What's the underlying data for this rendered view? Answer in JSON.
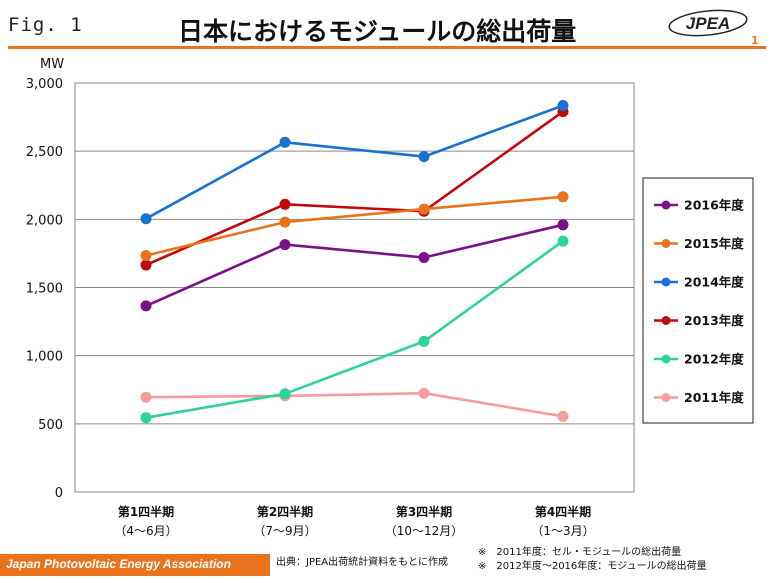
{
  "header": {
    "fig_label": "Fig. 1",
    "title": "日本におけるモジュールの総出荷量",
    "logo_text": "JPEA",
    "page_number": "1"
  },
  "footer": {
    "association": "Japan Photovoltaic Energy Association",
    "source": "出典：JPEA出荷統計資料をもとに作成",
    "notes": [
      "※　2011年度：セル・モジュールの総出荷量",
      "※　2012年度～2016年度：モジュールの総出荷量"
    ]
  },
  "colors": {
    "accent": "#e8731c",
    "2016": "#7b118a",
    "2015": "#e8731c",
    "2014": "#1a72d0",
    "2013": "#c00a0a",
    "2012": "#2fd39a",
    "2011": "#f59c9c"
  },
  "chart_data": {
    "type": "line",
    "title": "",
    "ylabel": "MW",
    "xlabel": "",
    "ylim": [
      0,
      3000
    ],
    "yticks": [
      0,
      500,
      1000,
      1500,
      2000,
      2500,
      3000
    ],
    "ytick_labels": [
      "0",
      "500",
      "1,000",
      "1,500",
      "2,000",
      "2,500",
      "3,000"
    ],
    "grid": true,
    "legend_position": "right",
    "categories": [
      {
        "label": "第1四半期",
        "sub": "（4～6月）"
      },
      {
        "label": "第2四半期",
        "sub": "（7～9月）"
      },
      {
        "label": "第3四半期",
        "sub": "（10～12月）"
      },
      {
        "label": "第4四半期",
        "sub": "（1～3月）"
      }
    ],
    "series": [
      {
        "name": "2016年度",
        "color": "#7b118a",
        "values": [
          1365,
          1815,
          1720,
          1960
        ]
      },
      {
        "name": "2015年度",
        "color": "#e8731c",
        "values": [
          1735,
          1980,
          2075,
          2165
        ]
      },
      {
        "name": "2014年度",
        "color": "#1a72d0",
        "values": [
          2005,
          2565,
          2460,
          2835
        ]
      },
      {
        "name": "2013年度",
        "color": "#c00a0a",
        "values": [
          1665,
          2110,
          2060,
          2790
        ]
      },
      {
        "name": "2012年度",
        "color": "#2fd39a",
        "values": [
          545,
          720,
          1105,
          1840
        ]
      },
      {
        "name": "2011年度",
        "color": "#f59c9c",
        "values": [
          695,
          705,
          725,
          555
        ]
      }
    ]
  }
}
